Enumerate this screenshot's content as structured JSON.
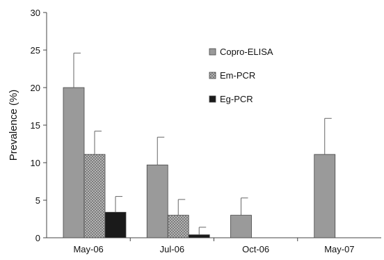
{
  "chart_data": {
    "type": "bar",
    "categories": [
      "May-06",
      "Jul-06",
      "Oct-06",
      "May-07"
    ],
    "series": [
      {
        "name": "Copro-ELISA",
        "values": [
          20.0,
          9.7,
          3.0,
          11.1
        ],
        "errors": [
          4.6,
          3.7,
          2.3,
          4.8
        ],
        "color": "#9a9a9a",
        "pattern": "solid"
      },
      {
        "name": "Em-PCR",
        "values": [
          11.1,
          3.0,
          null,
          null
        ],
        "errors": [
          3.1,
          2.1,
          null,
          null
        ],
        "color": "#a8a8a8",
        "pattern": "dotted"
      },
      {
        "name": "Eg-PCR",
        "values": [
          3.4,
          0.4,
          null,
          null
        ],
        "errors": [
          2.1,
          1.0,
          null,
          null
        ],
        "color": "#1a1a1a",
        "pattern": "solid"
      }
    ],
    "title": "",
    "xlabel": "",
    "ylabel": "Prevalence (%)",
    "ylim": [
      0,
      30
    ],
    "yticks": [
      0,
      5,
      10,
      15,
      20,
      25,
      30
    ],
    "grid": false,
    "legend_position": "top-center",
    "error_bars": "upper"
  }
}
